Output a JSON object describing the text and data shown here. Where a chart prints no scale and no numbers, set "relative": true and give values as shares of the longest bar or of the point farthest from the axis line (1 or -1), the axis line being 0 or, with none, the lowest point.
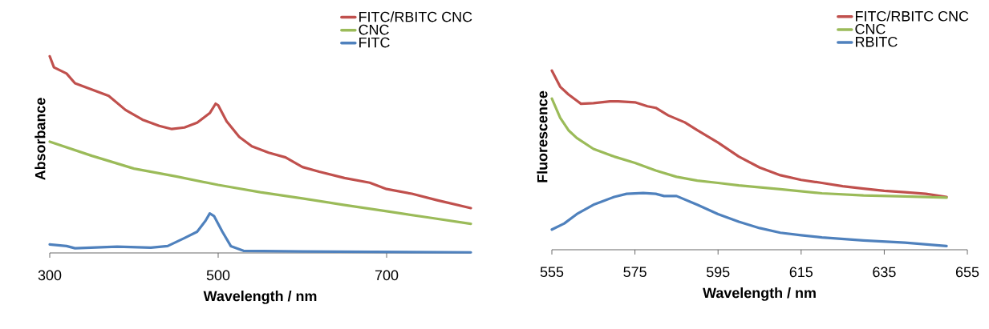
{
  "chart_data": [
    {
      "type": "line",
      "relative": true,
      "xlabel": "Wavelength / nm",
      "ylabel": "Absorbance",
      "xlim": [
        300,
        800
      ],
      "xticks": [
        300,
        500,
        700
      ],
      "legend": "top right",
      "grid": false,
      "marker": "none",
      "series": [
        {
          "name": "FITC/RBITC CNC",
          "color": "#c0504d",
          "x": [
            300,
            305,
            320,
            330,
            350,
            370,
            390,
            410,
            430,
            445,
            460,
            475,
            490,
            497,
            500,
            510,
            525,
            540,
            560,
            580,
            600,
            620,
            650,
            680,
            700,
            730,
            760,
            800
          ],
          "values": [
            1.0,
            0.944,
            0.912,
            0.863,
            0.831,
            0.799,
            0.727,
            0.678,
            0.646,
            0.63,
            0.638,
            0.662,
            0.711,
            0.759,
            0.751,
            0.67,
            0.59,
            0.542,
            0.51,
            0.486,
            0.437,
            0.413,
            0.381,
            0.357,
            0.325,
            0.301,
            0.268,
            0.228
          ]
        },
        {
          "name": "CNC",
          "color": "#9bbb59",
          "x": [
            300,
            350,
            400,
            450,
            500,
            550,
            600,
            650,
            700,
            750,
            800
          ],
          "values": [
            0.566,
            0.494,
            0.429,
            0.389,
            0.346,
            0.309,
            0.277,
            0.244,
            0.212,
            0.18,
            0.148
          ]
        },
        {
          "name": "FITC",
          "color": "#4f81bd",
          "x": [
            300,
            320,
            330,
            380,
            420,
            440,
            460,
            475,
            485,
            490,
            495,
            505,
            515,
            530,
            600,
            800
          ],
          "values": [
            0.043,
            0.035,
            0.024,
            0.032,
            0.027,
            0.035,
            0.076,
            0.108,
            0.164,
            0.201,
            0.188,
            0.108,
            0.035,
            0.011,
            0.008,
            0.003
          ]
        }
      ]
    },
    {
      "type": "line",
      "relative": true,
      "xlabel": "Wavelength / nm",
      "ylabel": "Fluorescence",
      "xlim": [
        555,
        655
      ],
      "xticks": [
        555,
        575,
        595,
        615,
        635,
        655
      ],
      "legend": "top right",
      "grid": false,
      "marker": "none",
      "series": [
        {
          "name": "FITC/RBITC CNC",
          "color": "#c0504d",
          "x": [
            555,
            557,
            559,
            561,
            562,
            565,
            569,
            571,
            575,
            578,
            580,
            583,
            587,
            590,
            595,
            600,
            605,
            610,
            615,
            620,
            625,
            630,
            635,
            640,
            645,
            650
          ],
          "values": [
            1.0,
            0.91,
            0.867,
            0.832,
            0.815,
            0.818,
            0.828,
            0.828,
            0.823,
            0.801,
            0.792,
            0.75,
            0.711,
            0.667,
            0.598,
            0.52,
            0.459,
            0.416,
            0.39,
            0.373,
            0.355,
            0.341,
            0.329,
            0.321,
            0.312,
            0.295
          ]
        },
        {
          "name": "CNC",
          "color": "#9bbb59",
          "x": [
            555,
            557,
            559,
            561,
            565,
            570,
            575,
            580,
            585,
            590,
            595,
            600,
            610,
            620,
            630,
            640,
            650
          ],
          "values": [
            0.844,
            0.737,
            0.667,
            0.624,
            0.563,
            0.52,
            0.485,
            0.442,
            0.407,
            0.386,
            0.373,
            0.359,
            0.338,
            0.315,
            0.303,
            0.298,
            0.291
          ]
        },
        {
          "name": "RBITC",
          "color": "#4f81bd",
          "x": [
            555,
            558,
            561,
            565,
            570,
            573,
            577,
            580,
            582,
            585,
            590,
            595,
            600,
            605,
            610,
            615,
            620,
            630,
            640,
            650
          ],
          "values": [
            0.113,
            0.147,
            0.199,
            0.251,
            0.295,
            0.312,
            0.317,
            0.312,
            0.3,
            0.3,
            0.251,
            0.199,
            0.156,
            0.121,
            0.095,
            0.081,
            0.069,
            0.052,
            0.04,
            0.021
          ]
        }
      ]
    }
  ]
}
